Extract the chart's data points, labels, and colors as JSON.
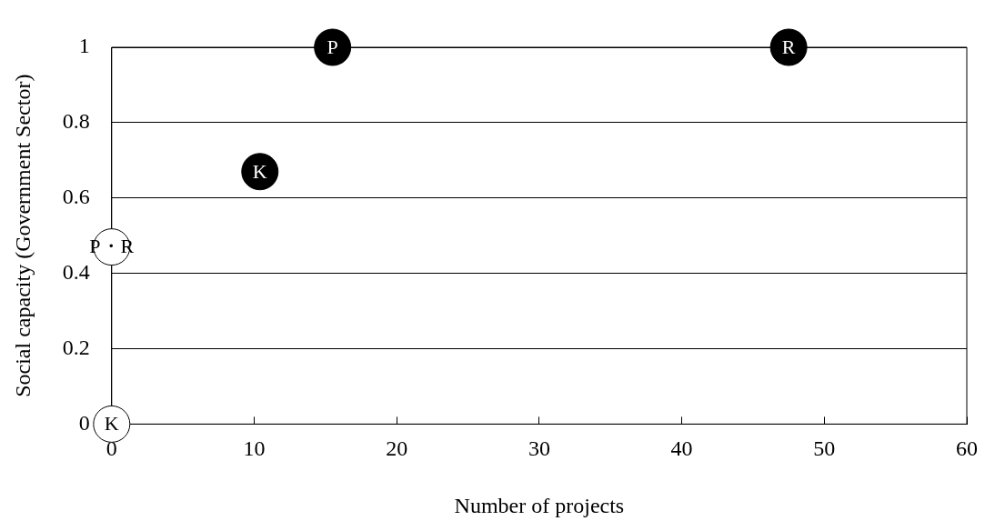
{
  "chart_data": {
    "type": "scatter",
    "xlabel": "Number of projects",
    "ylabel": "Social capacity (Government Sector)",
    "xlim": [
      0,
      60
    ],
    "xticks": [
      0,
      10,
      20,
      30,
      40,
      50,
      60
    ],
    "ylim": [
      0,
      1
    ],
    "yticks": [
      0,
      0.2,
      0.4,
      0.6,
      0.8,
      1
    ],
    "grid": "y",
    "marker": "circle",
    "series": [
      {
        "color": "#000000",
        "x": [
          10.4,
          15.5,
          47.5
        ],
        "values": [
          0.67,
          1,
          1
        ],
        "value_labels": [
          "K",
          "P",
          "R"
        ]
      },
      {
        "color": "#ffffff",
        "x": [
          0,
          0
        ],
        "values": [
          0,
          0.47
        ],
        "value_labels": [
          "K",
          "P・R"
        ]
      }
    ]
  }
}
